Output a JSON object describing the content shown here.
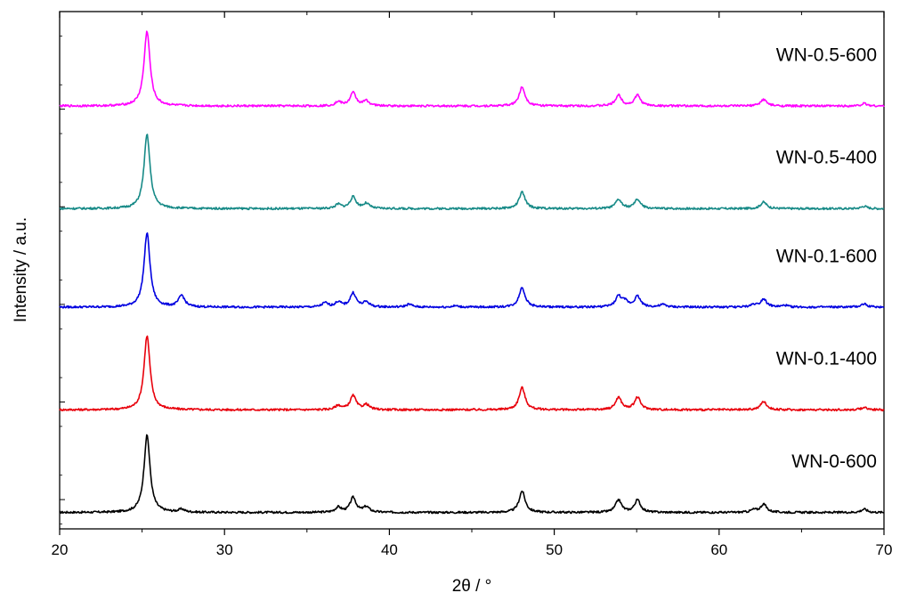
{
  "chart_data": {
    "type": "line",
    "title": "",
    "xlabel": "2θ / °",
    "ylabel": "Intensity / a.u.",
    "xlim": [
      20,
      70
    ],
    "x_ticks": [
      20,
      30,
      40,
      50,
      60,
      70
    ],
    "y_tick_labels": false,
    "grid": false,
    "legend": "inline-right",
    "peak_width": 0.22,
    "series": [
      {
        "name": "WN-0-600",
        "color": "#000000",
        "baseline": 0.2,
        "peaks": [
          [
            25.3,
            9.4
          ],
          [
            27.4,
            0.35
          ],
          [
            36.9,
            0.6
          ],
          [
            37.8,
            1.8
          ],
          [
            38.6,
            0.65
          ],
          [
            48.05,
            2.6
          ],
          [
            53.9,
            1.5
          ],
          [
            55.05,
            1.5
          ],
          [
            62.1,
            0.3
          ],
          [
            62.7,
            1.0
          ],
          [
            68.8,
            0.4
          ]
        ]
      },
      {
        "name": "WN-0.1-400",
        "color": "#e8000b",
        "baseline": 1.45,
        "peaks": [
          [
            25.3,
            9.0
          ],
          [
            36.9,
            0.5
          ],
          [
            37.8,
            1.7
          ],
          [
            38.6,
            0.6
          ],
          [
            48.05,
            2.7
          ],
          [
            53.9,
            1.5
          ],
          [
            55.05,
            1.5
          ],
          [
            62.7,
            1.0
          ],
          [
            68.8,
            0.3
          ]
        ]
      },
      {
        "name": "WN-0.1-600",
        "color": "#0000e0",
        "baseline": 2.7,
        "peaks": [
          [
            25.3,
            9.0
          ],
          [
            27.4,
            1.4
          ],
          [
            36.1,
            0.5
          ],
          [
            36.9,
            0.6
          ],
          [
            37.8,
            1.7
          ],
          [
            38.6,
            0.6
          ],
          [
            41.2,
            0.35
          ],
          [
            44.0,
            0.15
          ],
          [
            48.05,
            2.4
          ],
          [
            53.9,
            1.3
          ],
          [
            54.3,
            0.6
          ],
          [
            55.05,
            1.3
          ],
          [
            56.6,
            0.3
          ],
          [
            62.1,
            0.3
          ],
          [
            62.7,
            1.0
          ],
          [
            64.0,
            0.2
          ],
          [
            68.8,
            0.4
          ]
        ]
      },
      {
        "name": "WN-0.5-400",
        "color": "#178a87",
        "baseline": 3.9,
        "peaks": [
          [
            25.3,
            9.0
          ],
          [
            36.9,
            0.5
          ],
          [
            37.8,
            1.4
          ],
          [
            38.6,
            0.6
          ],
          [
            48.05,
            2.0
          ],
          [
            53.9,
            1.1
          ],
          [
            55.05,
            1.1
          ],
          [
            62.7,
            0.8
          ],
          [
            68.8,
            0.3
          ]
        ]
      },
      {
        "name": "WN-0.5-600",
        "color": "#ff00ff",
        "baseline": 5.15,
        "peaks": [
          [
            25.3,
            9.1
          ],
          [
            36.9,
            0.5
          ],
          [
            37.8,
            1.6
          ],
          [
            38.6,
            0.6
          ],
          [
            48.05,
            2.3
          ],
          [
            53.9,
            1.3
          ],
          [
            55.05,
            1.3
          ],
          [
            62.7,
            0.8
          ],
          [
            68.8,
            0.3
          ]
        ]
      }
    ],
    "ylim": [
      0,
      6.3
    ]
  }
}
